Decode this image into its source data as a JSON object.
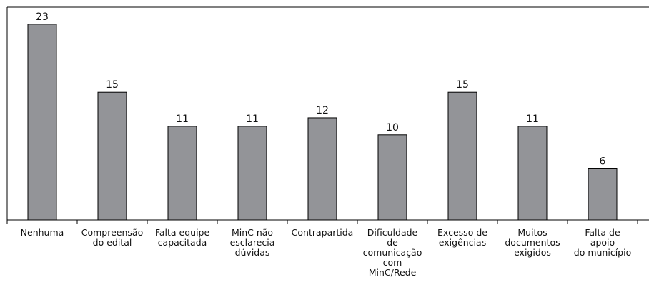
{
  "chart_data": {
    "type": "bar",
    "categories": [
      "Nenhuma",
      "Compreensão\ndo edital",
      "Falta equipe\ncapacitada",
      "MinC não\nesclarecia\ndúvidas",
      "Contrapartida",
      "Dificuldade\nde\ncomunicação\ncom\nMinC/Rede",
      "Excesso de\nexigências",
      "Muitos\ndocumentos\nexigidos",
      "Falta de\napoio\ndo município"
    ],
    "values": [
      23,
      15,
      11,
      11,
      12,
      10,
      15,
      11,
      6
    ],
    "color": "#939498",
    "ylim": [
      0,
      25
    ],
    "grid": false
  }
}
